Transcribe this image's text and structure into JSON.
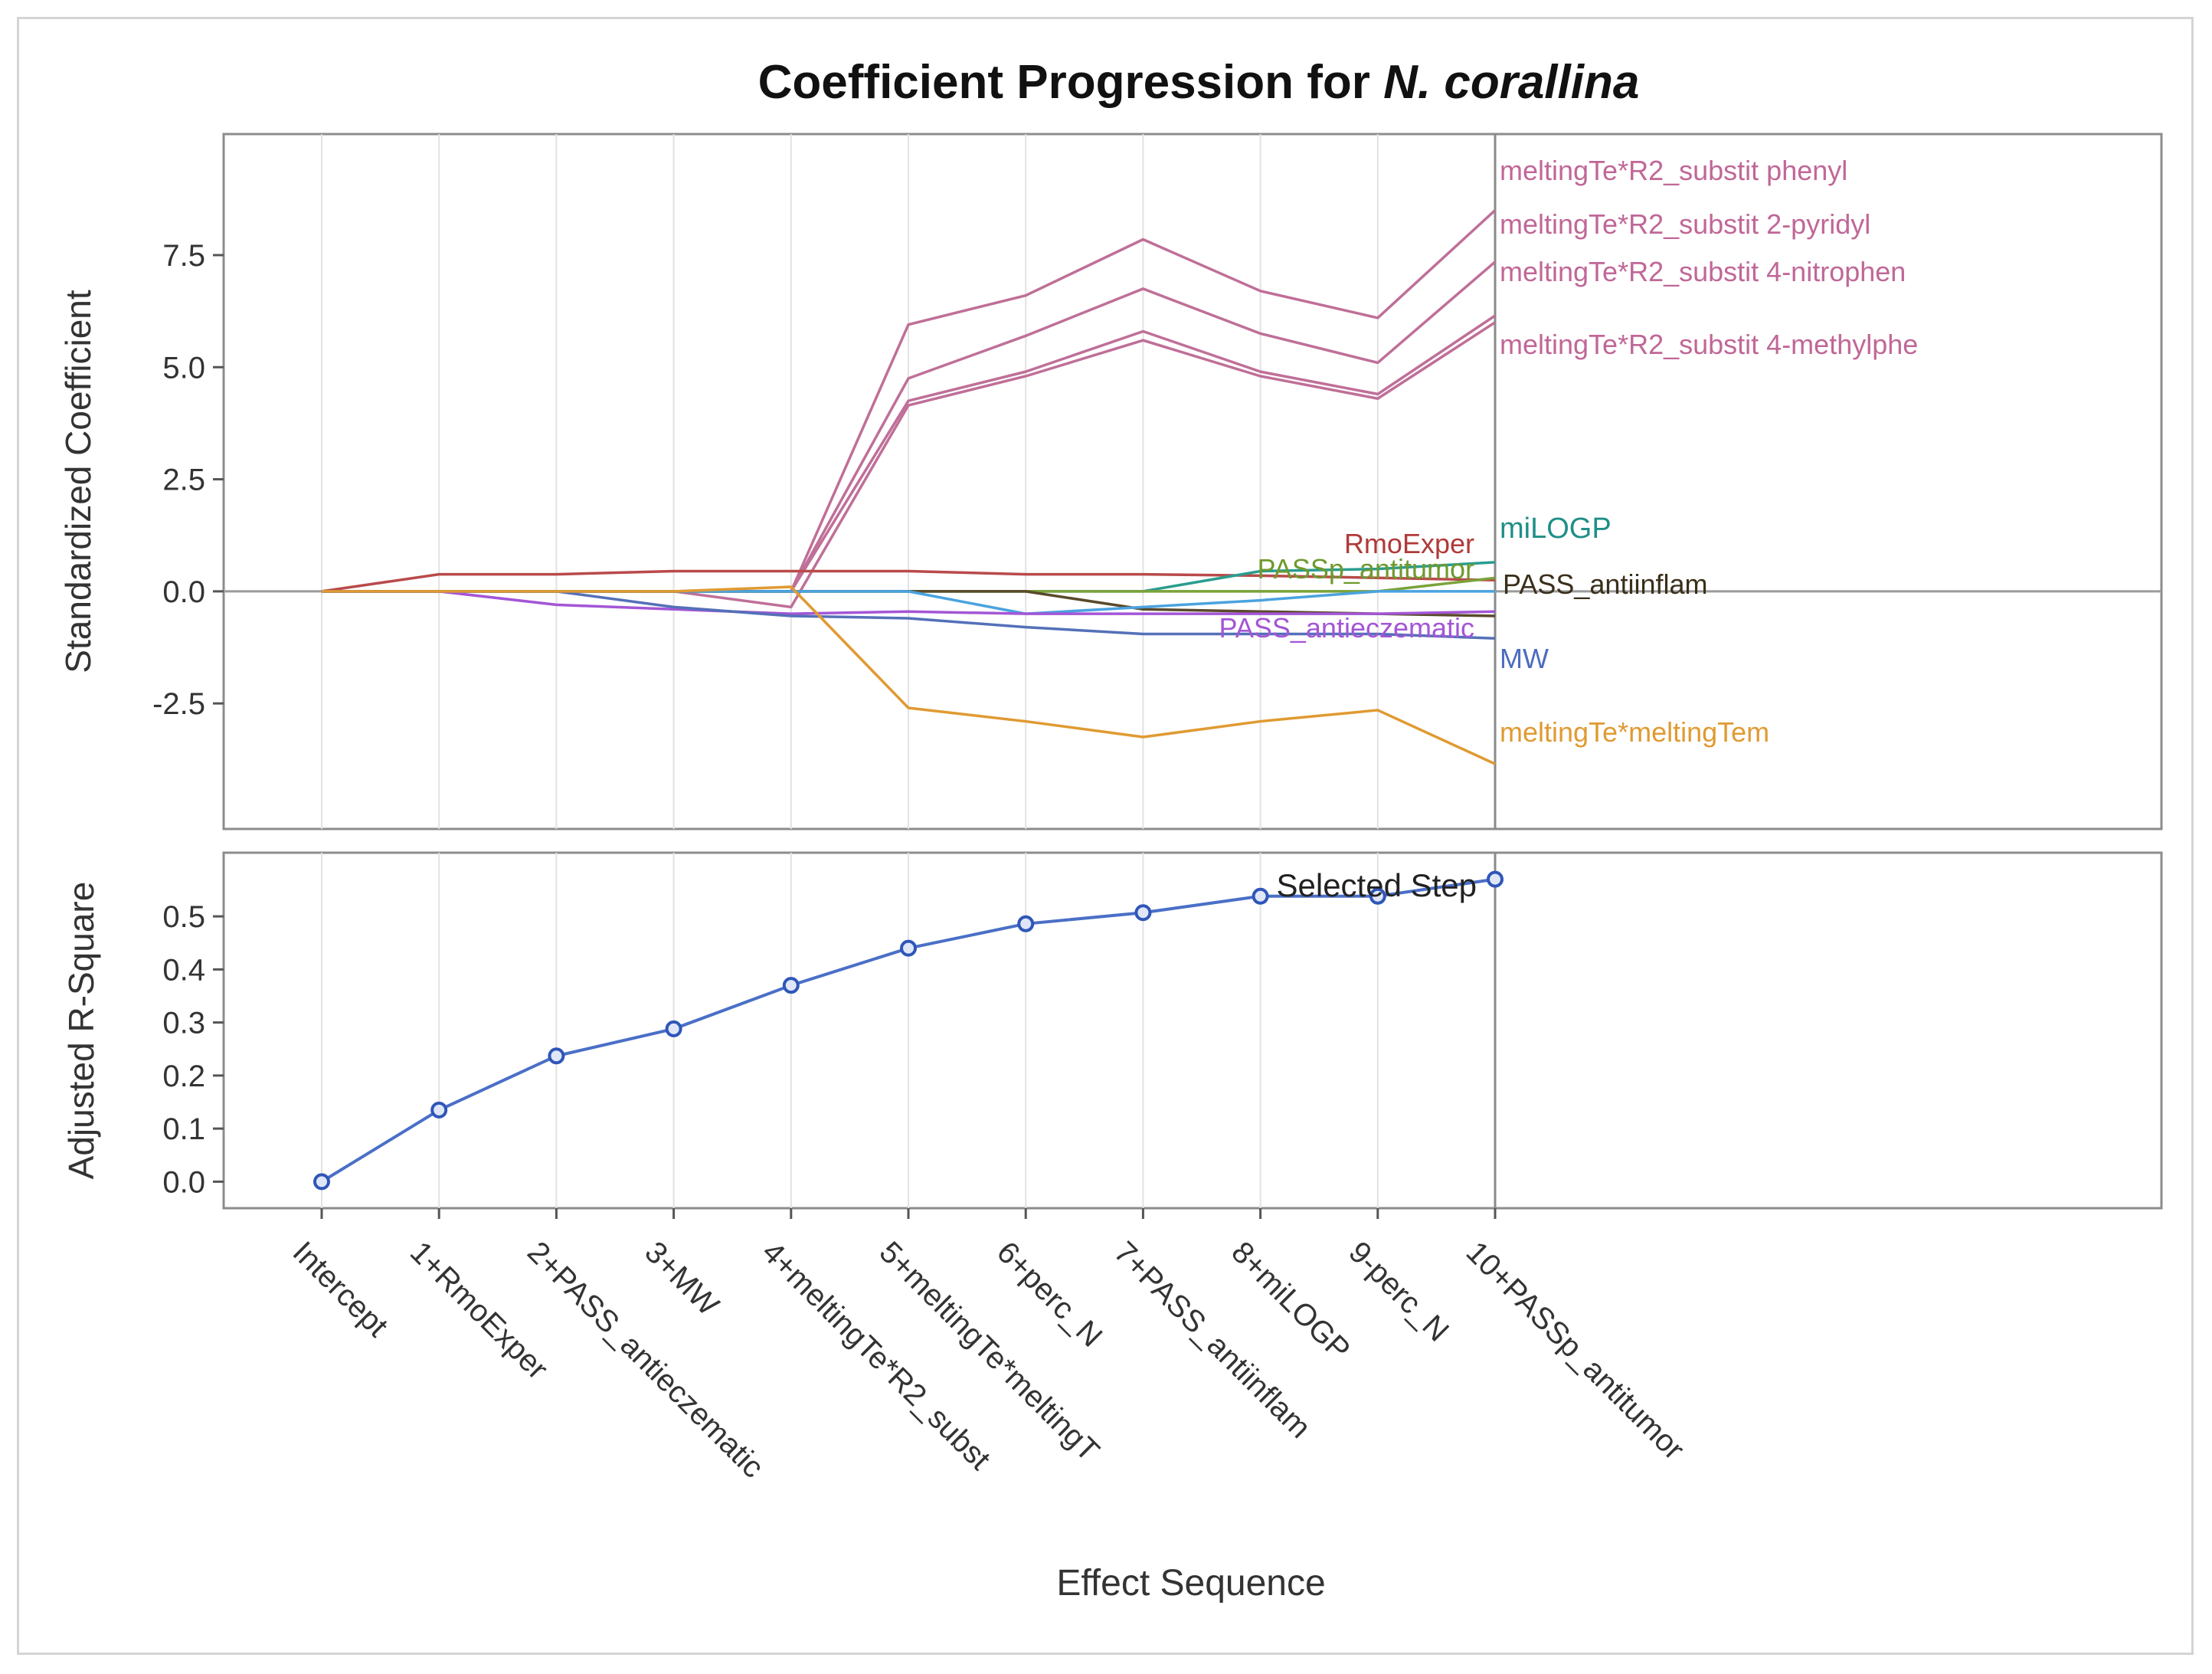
{
  "chart_data": [
    {
      "type": "line",
      "title_prefix": "Coefficient Progression for ",
      "title_italic": "N. corallina",
      "ylabel": "Standardized Coefficient",
      "ylim": [
        -5.3,
        10.2
      ],
      "yticks": [
        -2.5,
        0.0,
        2.5,
        5.0,
        7.5
      ],
      "ytick_labels": [
        "-2.5",
        "0.0",
        "2.5",
        "5.0",
        "7.5"
      ],
      "selected_step_index": 10,
      "series": [
        {
          "name": "meltingTe*R2_substit phenyl",
          "color": "#bf6f98",
          "values": [
            0,
            0,
            0,
            0,
            0,
            5.95,
            6.6,
            7.85,
            6.7,
            6.1,
            8.5
          ]
        },
        {
          "name": "meltingTe*R2_substit 2-pyridyl",
          "color": "#bf6f98",
          "values": [
            0,
            0,
            0,
            0,
            0,
            4.75,
            5.7,
            6.75,
            5.75,
            5.1,
            7.35
          ]
        },
        {
          "name": "meltingTe*R2_substit 4-nitrophen",
          "color": "#bf6f98",
          "values": [
            0,
            0,
            0,
            0,
            0,
            4.25,
            4.9,
            5.8,
            4.9,
            4.4,
            6.15
          ]
        },
        {
          "name": "meltingTe*R2_substit 4-methylphe",
          "color": "#bf6f98",
          "values": [
            0,
            0,
            0,
            0,
            -0.35,
            4.15,
            4.8,
            5.6,
            4.8,
            4.3,
            6.0
          ]
        },
        {
          "name": "RmoExper",
          "color": "#b94a4a",
          "values": [
            0,
            0.38,
            0.38,
            0.45,
            0.45,
            0.45,
            0.38,
            0.38,
            0.35,
            0.3,
            0.25
          ]
        },
        {
          "name": "miLOGP",
          "color": "#2a9d8f",
          "values": [
            0,
            0,
            0,
            0,
            0,
            0,
            0,
            0,
            0.45,
            0.5,
            0.65
          ]
        },
        {
          "name": "PASSp_antitumor",
          "color": "#7aa33a",
          "values": [
            0,
            0,
            0,
            0,
            0,
            0,
            0,
            0,
            0,
            0,
            0.3
          ]
        },
        {
          "name": "PASS_antiinflam",
          "color": "#5a4a2a",
          "values": [
            0,
            0,
            0,
            0,
            0,
            0,
            0,
            -0.4,
            -0.45,
            -0.5,
            -0.55
          ]
        },
        {
          "name": "perc_N",
          "color": "#4aa3df",
          "values": [
            0,
            0,
            0,
            0,
            0,
            0,
            -0.5,
            -0.35,
            -0.2,
            0,
            0
          ]
        },
        {
          "name": "PASS_antieczematic",
          "color": "#a356d6",
          "values": [
            0,
            0,
            -0.3,
            -0.4,
            -0.5,
            -0.45,
            -0.5,
            -0.5,
            -0.5,
            -0.5,
            -0.45
          ]
        },
        {
          "name": "MW",
          "color": "#5470b8",
          "values": [
            0,
            0,
            0,
            -0.35,
            -0.55,
            -0.6,
            -0.8,
            -0.95,
            -0.95,
            -0.95,
            -1.05
          ]
        },
        {
          "name": "meltingTe*meltingTem",
          "color": "#e09a32",
          "values": [
            0,
            0,
            0,
            0,
            0.1,
            -2.6,
            -2.9,
            -3.25,
            -2.9,
            -2.65,
            -3.85
          ]
        }
      ],
      "labels": [
        {
          "text": "meltingTe*R2_substit phenyl",
          "color": "#c06797"
        },
        {
          "text": "meltingTe*R2_substit 2-pyridyl",
          "color": "#c06797"
        },
        {
          "text": "meltingTe*R2_substit 4-nitrophen",
          "color": "#c06797"
        },
        {
          "text": "meltingTe*R2_substit 4-methylphe",
          "color": "#c06797"
        },
        {
          "text": "miLOGP",
          "color": "#1f8f86"
        },
        {
          "text": "RmoExper",
          "color": "#b03a3a"
        },
        {
          "text": "PASSp_antitumor",
          "color": "#6f9a2e"
        },
        {
          "text": "PASS_antiinflam",
          "color": "#3a2f1a"
        },
        {
          "text": "PASS_antieczematic",
          "color": "#a356d6"
        },
        {
          "text": "MW",
          "color": "#4c6cc0"
        },
        {
          "text": "meltingTe*meltingTem",
          "color": "#e09a32"
        }
      ]
    },
    {
      "type": "line",
      "ylabel": "Adjusted R-Square",
      "xlabel": "Effect Sequence",
      "ylim": [
        -0.05,
        0.62
      ],
      "yticks": [
        0.0,
        0.1,
        0.2,
        0.3,
        0.4,
        0.5
      ],
      "ytick_labels": [
        "0.0",
        "0.1",
        "0.2",
        "0.3",
        "0.4",
        "0.5"
      ],
      "categories": [
        "Intercept",
        "1+RmoExper",
        "2+PASS_antieczematic",
        "3+MW",
        "4+meltingTe*R2_subst",
        "5+meltingTe*meltingT",
        "6+perc_N",
        "7+PASS_antiinflam",
        "8+miLOGP",
        "9-perc_N",
        "10+PASSp_antitumor"
      ],
      "values": [
        0.0,
        0.135,
        0.237,
        0.288,
        0.37,
        0.44,
        0.486,
        0.507,
        0.538,
        0.538,
        0.57
      ],
      "color": "#4a6fc7",
      "annotation": "Selected Step"
    }
  ]
}
